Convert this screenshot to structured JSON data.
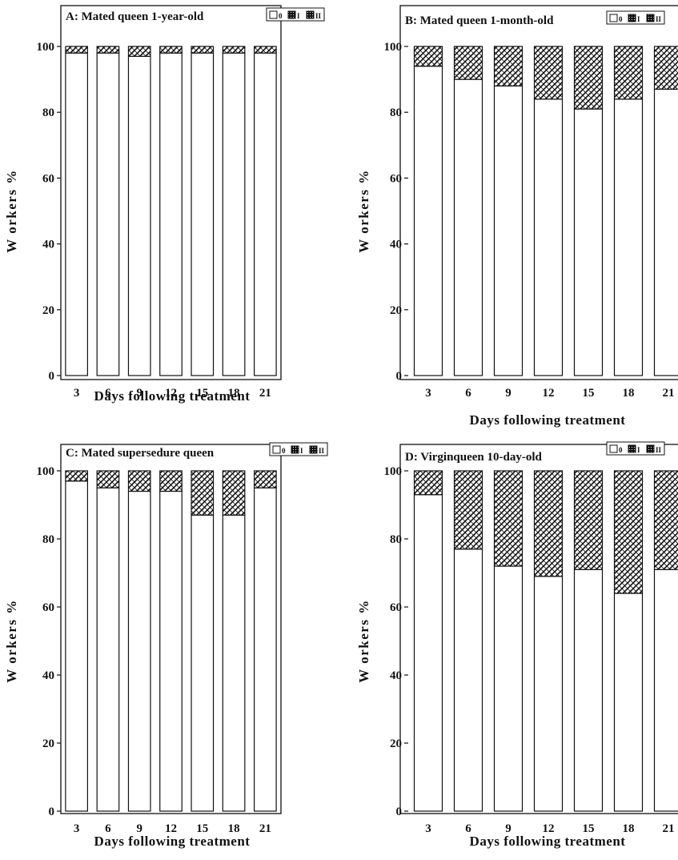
{
  "chart_data": [
    {
      "type": "bar",
      "stacked": true,
      "title": "A: Mated queen 1-year-old",
      "xlabel": "Days following treatment",
      "ylabel": "W orkers %",
      "categories": [
        "3",
        "6",
        "9",
        "12",
        "15",
        "18",
        "21"
      ],
      "yticks": [
        "0",
        "20",
        "40",
        "60",
        "80",
        "100"
      ],
      "ylim": [
        0,
        100
      ],
      "legend": [
        "0",
        "I",
        "II"
      ],
      "legend_position": "top-right",
      "grid": false,
      "series": [
        {
          "name": "0",
          "values": [
            98,
            98,
            97,
            98,
            98,
            98,
            98
          ]
        },
        {
          "name": "I",
          "values": [
            2,
            2,
            3,
            2,
            2,
            2,
            2
          ]
        },
        {
          "name": "II",
          "values": [
            0,
            0,
            0,
            0,
            0,
            0,
            0
          ]
        }
      ]
    },
    {
      "type": "bar",
      "stacked": true,
      "title": "B: Mated queen 1-month-old",
      "xlabel": "Days following treatment",
      "ylabel": "W orkers %",
      "categories": [
        "3",
        "6",
        "9",
        "12",
        "15",
        "18",
        "21"
      ],
      "yticks": [
        "0",
        "20",
        "40",
        "60",
        "80",
        "100"
      ],
      "ylim": [
        0,
        100
      ],
      "legend": [
        "0",
        "I",
        "II"
      ],
      "legend_position": "top-right",
      "grid": false,
      "series": [
        {
          "name": "0",
          "values": [
            94,
            90,
            88,
            84,
            81,
            84,
            87
          ]
        },
        {
          "name": "I",
          "values": [
            6,
            10,
            12,
            16,
            19,
            16,
            13
          ]
        },
        {
          "name": "II",
          "values": [
            0,
            0,
            0,
            0,
            0,
            0,
            0
          ]
        }
      ]
    },
    {
      "type": "bar",
      "stacked": true,
      "title": "C: Mated supersedure queen",
      "xlabel": "Days following treatment",
      "ylabel": "W orkers %",
      "categories": [
        "3",
        "6",
        "9",
        "12",
        "15",
        "18",
        "21"
      ],
      "yticks": [
        "0",
        "20",
        "40",
        "60",
        "80",
        "100"
      ],
      "ylim": [
        0,
        100
      ],
      "legend": [
        "0",
        "I",
        "II"
      ],
      "legend_position": "top-right",
      "grid": false,
      "series": [
        {
          "name": "0",
          "values": [
            97,
            95,
            94,
            94,
            87,
            87,
            95
          ]
        },
        {
          "name": "I",
          "values": [
            3,
            5,
            6,
            6,
            13,
            13,
            5
          ]
        },
        {
          "name": "II",
          "values": [
            0,
            0,
            0,
            0,
            0,
            0,
            0
          ]
        }
      ]
    },
    {
      "type": "bar",
      "stacked": true,
      "title": "D: Virginqueen 10-day-old",
      "xlabel": "Days following treatment",
      "ylabel": "W orkers %",
      "categories": [
        "3",
        "6",
        "9",
        "12",
        "15",
        "18",
        "21"
      ],
      "yticks": [
        "0",
        "20",
        "40",
        "60",
        "80",
        "100"
      ],
      "ylim": [
        0,
        100
      ],
      "legend": [
        "0",
        "I",
        "II"
      ],
      "legend_position": "top-right",
      "grid": false,
      "series": [
        {
          "name": "0",
          "values": [
            93,
            77,
            72,
            69,
            71,
            64,
            71
          ]
        },
        {
          "name": "I",
          "values": [
            7,
            23,
            28,
            31,
            29,
            36,
            29
          ]
        },
        {
          "name": "II",
          "values": [
            0,
            0,
            0,
            0,
            0,
            0,
            0
          ]
        }
      ]
    }
  ]
}
